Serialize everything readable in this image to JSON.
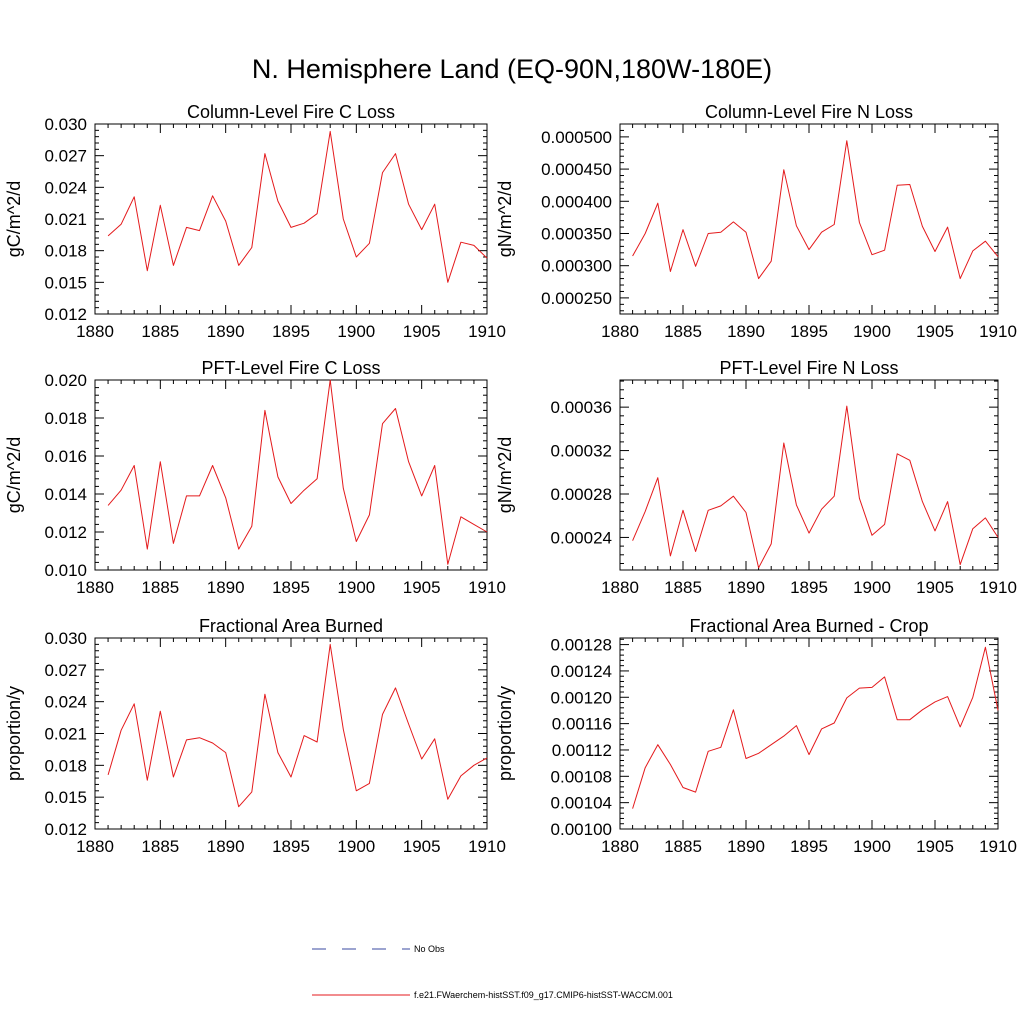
{
  "figure": {
    "title": "N. Hemisphere Land (EQ-90N,180W-180E)"
  },
  "legend": {
    "entries": [
      {
        "label": "No Obs",
        "color": "#3a4aa0",
        "style": "dashed"
      },
      {
        "label": "f.e21.FWaerchem-histSST.f09_g17.CMIP6-histSST-WACCM.001",
        "color": "#e41a1c",
        "style": "solid"
      }
    ]
  },
  "chart_data": [
    {
      "type": "line",
      "title": "Column-Level Fire C Loss",
      "ylabel": "gC/m^2/d",
      "xlim": [
        1880,
        1910
      ],
      "ylim": [
        0.012,
        0.03
      ],
      "xticks": [
        1880,
        1885,
        1890,
        1895,
        1900,
        1905,
        1910
      ],
      "yticks": [
        0.012,
        0.015,
        0.018,
        0.021,
        0.024,
        0.027,
        0.03
      ],
      "ytick_labels": [
        "0.012",
        "0.015",
        "0.018",
        "0.021",
        "0.024",
        "0.027",
        "0.030"
      ],
      "x": [
        1881,
        1882,
        1883,
        1884,
        1885,
        1886,
        1887,
        1888,
        1889,
        1890,
        1891,
        1892,
        1893,
        1894,
        1895,
        1896,
        1897,
        1898,
        1899,
        1900,
        1901,
        1902,
        1903,
        1904,
        1905,
        1906,
        1907,
        1908,
        1909,
        1910
      ],
      "series": [
        {
          "color": "#e41a1c",
          "values": [
            0.0194,
            0.0205,
            0.0231,
            0.0161,
            0.0223,
            0.0166,
            0.0202,
            0.0199,
            0.0232,
            0.0208,
            0.0166,
            0.0183,
            0.0272,
            0.0227,
            0.0202,
            0.0206,
            0.0215,
            0.0293,
            0.021,
            0.0174,
            0.0187,
            0.0254,
            0.0272,
            0.0224,
            0.02,
            0.0224,
            0.015,
            0.0188,
            0.0185,
            0.0173
          ]
        }
      ]
    },
    {
      "type": "line",
      "title": "Column-Level Fire N Loss",
      "ylabel": "gN/m^2/d",
      "xlim": [
        1880,
        1910
      ],
      "ylim": [
        0.000225,
        0.00052
      ],
      "xticks": [
        1880,
        1885,
        1890,
        1895,
        1900,
        1905,
        1910
      ],
      "yticks": [
        0.00025,
        0.0003,
        0.00035,
        0.0004,
        0.00045,
        0.0005
      ],
      "ytick_labels": [
        "0.000250",
        "0.000300",
        "0.000350",
        "0.000400",
        "0.000450",
        "0.000500"
      ],
      "x": [
        1881,
        1882,
        1883,
        1884,
        1885,
        1886,
        1887,
        1888,
        1889,
        1890,
        1891,
        1892,
        1893,
        1894,
        1895,
        1896,
        1897,
        1898,
        1899,
        1900,
        1901,
        1902,
        1903,
        1904,
        1905,
        1906,
        1907,
        1908,
        1909,
        1910
      ],
      "series": [
        {
          "color": "#e41a1c",
          "values": [
            0.000315,
            0.00035,
            0.000397,
            0.000291,
            0.000356,
            0.000299,
            0.00035,
            0.000352,
            0.000368,
            0.000352,
            0.00028,
            0.000307,
            0.000449,
            0.000362,
            0.000325,
            0.000352,
            0.000364,
            0.000494,
            0.000367,
            0.000317,
            0.000324,
            0.000425,
            0.000426,
            0.000361,
            0.000322,
            0.00036,
            0.00028,
            0.000323,
            0.000338,
            0.000314
          ]
        }
      ]
    },
    {
      "type": "line",
      "title": "PFT-Level Fire C Loss",
      "ylabel": "gC/m^2/d",
      "xlim": [
        1880,
        1910
      ],
      "ylim": [
        0.01,
        0.02
      ],
      "xticks": [
        1880,
        1885,
        1890,
        1895,
        1900,
        1905,
        1910
      ],
      "yticks": [
        0.01,
        0.012,
        0.014,
        0.016,
        0.018,
        0.02
      ],
      "ytick_labels": [
        "0.010",
        "0.012",
        "0.014",
        "0.016",
        "0.018",
        "0.020"
      ],
      "x": [
        1881,
        1882,
        1883,
        1884,
        1885,
        1886,
        1887,
        1888,
        1889,
        1890,
        1891,
        1892,
        1893,
        1894,
        1895,
        1896,
        1897,
        1898,
        1899,
        1900,
        1901,
        1902,
        1903,
        1904,
        1905,
        1906,
        1907,
        1908,
        1909,
        1910
      ],
      "series": [
        {
          "color": "#e41a1c",
          "values": [
            0.0134,
            0.0142,
            0.0155,
            0.0111,
            0.0157,
            0.0114,
            0.0139,
            0.0139,
            0.0155,
            0.0138,
            0.0111,
            0.0123,
            0.0184,
            0.0149,
            0.0135,
            0.0142,
            0.0148,
            0.02,
            0.0143,
            0.0115,
            0.0129,
            0.0177,
            0.0185,
            0.0157,
            0.0139,
            0.0155,
            0.0103,
            0.0128,
            0.0124,
            0.012
          ]
        }
      ]
    },
    {
      "type": "line",
      "title": "PFT-Level Fire N Loss",
      "ylabel": "gN/m^2/d",
      "xlim": [
        1880,
        1910
      ],
      "ylim": [
        0.00021,
        0.000385
      ],
      "xticks": [
        1880,
        1885,
        1890,
        1895,
        1900,
        1905,
        1910
      ],
      "yticks": [
        0.00024,
        0.00028,
        0.00032,
        0.00036
      ],
      "ytick_labels": [
        "0.00024",
        "0.00028",
        "0.00032",
        "0.00036"
      ],
      "x": [
        1881,
        1882,
        1883,
        1884,
        1885,
        1886,
        1887,
        1888,
        1889,
        1890,
        1891,
        1892,
        1893,
        1894,
        1895,
        1896,
        1897,
        1898,
        1899,
        1900,
        1901,
        1902,
        1903,
        1904,
        1905,
        1906,
        1907,
        1908,
        1909,
        1910
      ],
      "series": [
        {
          "color": "#e41a1c",
          "values": [
            0.000237,
            0.000264,
            0.000295,
            0.000223,
            0.000265,
            0.000227,
            0.000265,
            0.000269,
            0.000278,
            0.000263,
            0.000212,
            0.000234,
            0.000327,
            0.00027,
            0.000244,
            0.000266,
            0.000278,
            0.000361,
            0.000276,
            0.000242,
            0.000252,
            0.000317,
            0.000311,
            0.000273,
            0.000246,
            0.000273,
            0.000215,
            0.000248,
            0.000258,
            0.00024
          ]
        }
      ]
    },
    {
      "type": "line",
      "title": "Fractional Area Burned",
      "ylabel": "proportion/y",
      "xlim": [
        1880,
        1910
      ],
      "ylim": [
        0.012,
        0.03
      ],
      "xticks": [
        1880,
        1885,
        1890,
        1895,
        1900,
        1905,
        1910
      ],
      "yticks": [
        0.012,
        0.015,
        0.018,
        0.021,
        0.024,
        0.027,
        0.03
      ],
      "ytick_labels": [
        "0.012",
        "0.015",
        "0.018",
        "0.021",
        "0.024",
        "0.027",
        "0.030"
      ],
      "x": [
        1881,
        1882,
        1883,
        1884,
        1885,
        1886,
        1887,
        1888,
        1889,
        1890,
        1891,
        1892,
        1893,
        1894,
        1895,
        1896,
        1897,
        1898,
        1899,
        1900,
        1901,
        1902,
        1903,
        1904,
        1905,
        1906,
        1907,
        1908,
        1909,
        1910
      ],
      "series": [
        {
          "color": "#e41a1c",
          "values": [
            0.0171,
            0.0213,
            0.0238,
            0.0166,
            0.0231,
            0.0169,
            0.0204,
            0.0206,
            0.0201,
            0.0192,
            0.0141,
            0.0155,
            0.0247,
            0.0192,
            0.0169,
            0.0208,
            0.0202,
            0.0294,
            0.0214,
            0.0156,
            0.0163,
            0.0228,
            0.0253,
            0.0219,
            0.0186,
            0.0205,
            0.0148,
            0.017,
            0.018,
            0.0187
          ]
        }
      ]
    },
    {
      "type": "line",
      "title": "Fractional Area Burned - Crop",
      "ylabel": "proportion/y",
      "xlim": [
        1880,
        1910
      ],
      "ylim": [
        0.001,
        0.00129
      ],
      "xticks": [
        1880,
        1885,
        1890,
        1895,
        1900,
        1905,
        1910
      ],
      "yticks": [
        0.001,
        0.00104,
        0.00108,
        0.00112,
        0.00116,
        0.0012,
        0.00124,
        0.00128
      ],
      "ytick_labels": [
        "0.00100",
        "0.00104",
        "0.00108",
        "0.00112",
        "0.00116",
        "0.00120",
        "0.00124",
        "0.00128"
      ],
      "x": [
        1881,
        1882,
        1883,
        1884,
        1885,
        1886,
        1887,
        1888,
        1889,
        1890,
        1891,
        1892,
        1893,
        1894,
        1895,
        1896,
        1897,
        1898,
        1899,
        1900,
        1901,
        1902,
        1903,
        1904,
        1905,
        1906,
        1907,
        1908,
        1909,
        1910
      ],
      "series": [
        {
          "color": "#e41a1c",
          "values": [
            0.001031,
            0.001093,
            0.001128,
            0.001098,
            0.001063,
            0.001056,
            0.001118,
            0.001124,
            0.001181,
            0.001107,
            0.001115,
            0.001128,
            0.001141,
            0.001157,
            0.001113,
            0.001152,
            0.001161,
            0.001199,
            0.001214,
            0.001215,
            0.001231,
            0.001166,
            0.001166,
            0.001181,
            0.001193,
            0.001201,
            0.001155,
            0.0012,
            0.001276,
            0.00118
          ]
        }
      ]
    }
  ]
}
